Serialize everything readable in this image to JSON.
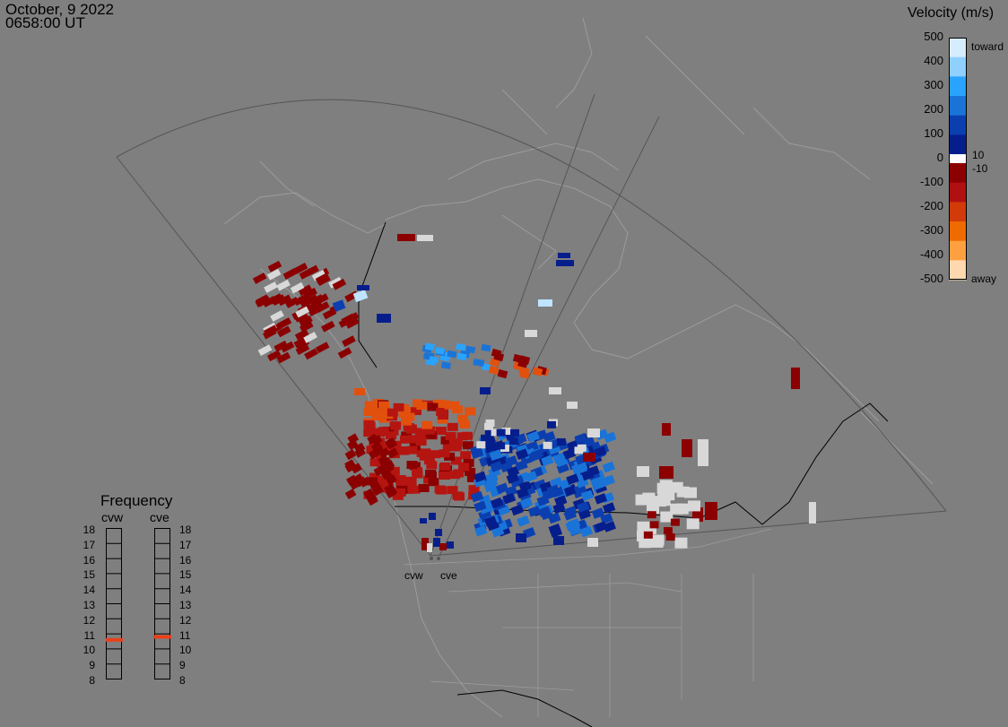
{
  "header": {
    "date": "October, 9 2022",
    "time": "0658:00 UT"
  },
  "colorbar": {
    "title": "Velocity (m/s)",
    "ticks": [
      "500",
      "400",
      "300",
      "200",
      "100",
      "0",
      "-100",
      "-200",
      "-300",
      "-400",
      "-500"
    ],
    "right_labels": [
      "toward",
      "10",
      "-10",
      "away"
    ],
    "colors_toward": [
      "#d6ecff",
      "#8fd0ff",
      "#2aa3ff",
      "#1a74d8",
      "#0b3fb0",
      "#061e8c"
    ],
    "colors_away": [
      "#8b0000",
      "#b01010",
      "#d23a0a",
      "#ef6a00",
      "#ffa040",
      "#ffd8b0"
    ],
    "zero_color": "#ffffff"
  },
  "frequency": {
    "title": "Frequency",
    "radars": [
      "cvw",
      "cve"
    ],
    "levels": [
      "18",
      "17",
      "16",
      "15",
      "14",
      "13",
      "12",
      "11",
      "10",
      "9",
      "8"
    ],
    "cvw_value_mhz": 10.6,
    "cve_value_mhz": 10.8,
    "marker_color": "#e8401a"
  },
  "sites": [
    "cvw",
    "cve"
  ],
  "map_style": {
    "background": "#7f7f7f",
    "coastline_color": "#9c9c9c",
    "border_color": "#000000",
    "fov_color": "#555555"
  }
}
